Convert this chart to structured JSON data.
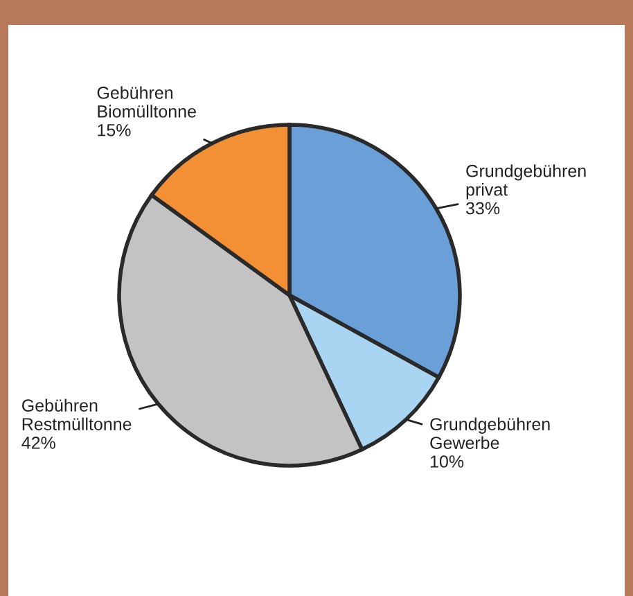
{
  "chart_data": {
    "type": "pie",
    "categories": [
      "Grundgebühren\nprivat",
      "Grundgebühren\nGewerbe",
      "Gebühren\nRestmülltonne",
      "Gebühren\nBiomülltonne"
    ],
    "values": [
      33,
      10,
      42,
      15
    ],
    "colors": [
      "#6a9fd8",
      "#a9d4f2",
      "#c3c3c3",
      "#f39035"
    ],
    "value_labels": [
      "33%",
      "10%",
      "42%",
      "15%"
    ]
  }
}
